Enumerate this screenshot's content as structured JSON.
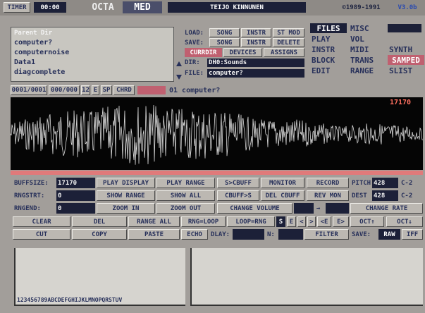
{
  "top_bar": {
    "timer_label": "TIMER",
    "timer": "00:00",
    "logo_octa": "OCTA",
    "logo_med": "MED",
    "author": "TEIJO KINNUNEN",
    "copyright": "©1989-1991",
    "version": "V3.0b"
  },
  "file_list": {
    "parent": "Parent Dir",
    "items": [
      "computer?",
      "computernoise",
      "Data1",
      "diagcomplete"
    ]
  },
  "file_buttons": {
    "rows": [
      [
        "LOAD:",
        "SONG",
        "INSTR",
        "ST MOD"
      ],
      [
        "SAVE:",
        "SONG",
        "INSTR",
        "DELETE"
      ],
      [
        "CURRDIR",
        "DEVICES",
        "ASSIGNS"
      ]
    ],
    "dir_label": "DIR:",
    "dir": "DH0:Sounds",
    "file_label": "FILE:",
    "file": "computer?"
  },
  "menu": [
    [
      "FILES",
      "MISC"
    ],
    [
      "PLAY",
      "VOL"
    ],
    [
      "INSTR",
      "MIDI",
      "SYNTH"
    ],
    [
      "BLOCK",
      "TRANS",
      "SAMPED"
    ],
    [
      "EDIT",
      "RANGE",
      "SLIST"
    ]
  ],
  "status": [
    "0001/0001",
    "000/000",
    "12",
    "E",
    "SP",
    "CHRD",
    "01 computer?"
  ],
  "waveform": {
    "length": "17170"
  },
  "controls": [
    [
      "BUFFSIZE:",
      "17170",
      "PLAY DISPLAY",
      "PLAY RANGE",
      "S>CBUFF",
      "MONITOR",
      "RECORD",
      "PITCH",
      "428",
      "C-2"
    ],
    [
      "RNGSTRT:",
      "0",
      "SHOW RANGE",
      "SHOW ALL",
      "CBUFF>S",
      "DEL CBUFF",
      "REV MON",
      "DEST",
      "428",
      "C-2"
    ],
    [
      "RNGEND:",
      "0",
      "ZOOM IN",
      "ZOOM OUT",
      "CHANGE VOLUME",
      "→",
      "CHANGE RATE"
    ],
    [
      "CLEAR",
      "DEL",
      "RANGE ALL",
      "RNG=LOOP",
      "LOOP=RNG",
      "S",
      "E",
      "<",
      ">",
      "<E",
      "E>",
      "OCT↑",
      "OCT↓"
    ],
    [
      "CUT",
      "COPY",
      "PASTE",
      "ECHO",
      "DLAY:",
      "N:",
      "FILTER",
      "SAVE:",
      "RAW",
      "IFF"
    ]
  ],
  "range_panel": {
    "channels": "123456789ABCDEFGHIJKLMNOPQRSTUV"
  }
}
